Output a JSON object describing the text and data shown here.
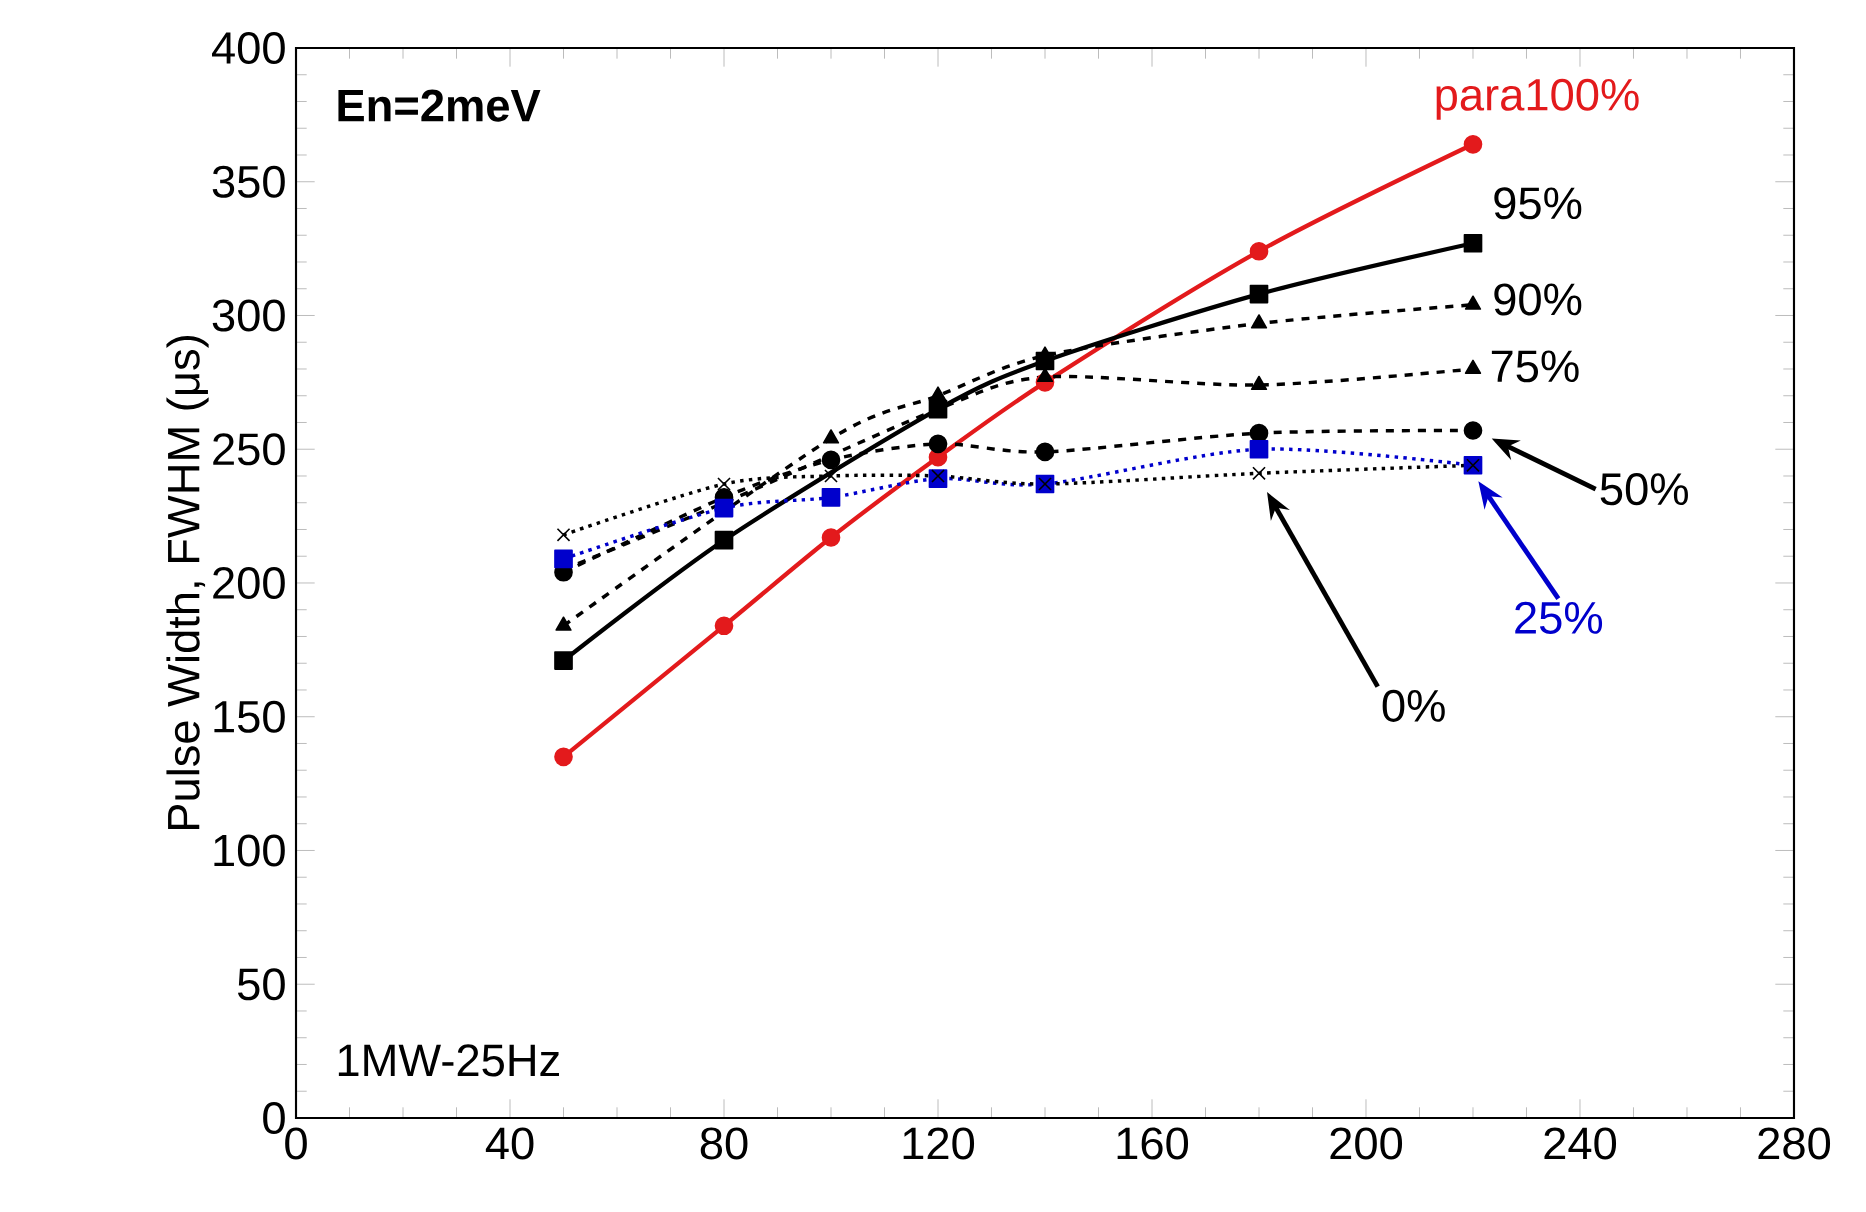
{
  "chart_data": {
    "type": "line",
    "annotations": [
      "**En=2meV**",
      "1MW-25Hz"
    ],
    "ylabel": "Pulse Width, FWHM (μs)",
    "x": [
      50,
      80,
      100,
      120,
      140,
      180,
      220
    ],
    "xlim": [
      0,
      280
    ],
    "xticks": [
      0,
      40,
      80,
      120,
      160,
      200,
      240,
      280
    ],
    "ylim": [
      0,
      400
    ],
    "yticks": [
      0,
      50,
      100,
      150,
      200,
      250,
      300,
      350,
      400
    ],
    "grid": false,
    "legend": "right",
    "series": [
      {
        "name": "para100%",
        "color": "#e31a1c",
        "marker": "circle",
        "line_style": "solid",
        "values": [
          135,
          184,
          217,
          247,
          275,
          324,
          364
        ]
      },
      {
        "name": "95%",
        "color": "#000000",
        "marker": "square",
        "line_style": "solid",
        "values": [
          171,
          216,
          null,
          265,
          283,
          308,
          327
        ]
      },
      {
        "name": "90%",
        "color": "#000000",
        "marker": "triangle",
        "line_style": "dashed",
        "values": [
          184,
          null,
          254,
          270,
          285,
          297,
          304
        ]
      },
      {
        "name": "75%",
        "color": "#000000",
        "marker": "triangle",
        "line_style": "dashed",
        "values": [
          205,
          230,
          null,
          265,
          277,
          274,
          280
        ]
      },
      {
        "name": "50%",
        "color": "#000000",
        "marker": "circle",
        "line_style": "dashed",
        "values": [
          204,
          232,
          246,
          252,
          249,
          256,
          257
        ]
      },
      {
        "name": "25%",
        "color": "#0000cc",
        "marker": "square",
        "line_style": "dotted",
        "values": [
          209,
          228,
          232,
          239,
          237,
          250,
          244
        ]
      },
      {
        "name": "0%",
        "color": "#000000",
        "marker": "cross",
        "line_style": "dotted",
        "values": [
          218,
          237,
          240,
          240,
          237,
          241,
          244
        ]
      }
    ]
  }
}
